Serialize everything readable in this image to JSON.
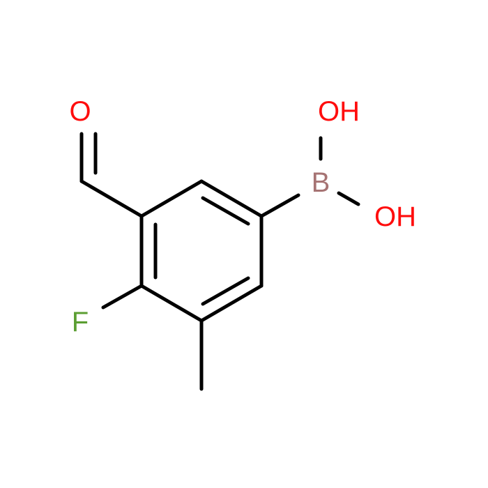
{
  "atoms": [
    {
      "label": "O"
    },
    {
      "label": "OH"
    },
    {
      "label": "B"
    },
    {
      "label": "OH"
    },
    {
      "label": "F"
    }
  ]
}
